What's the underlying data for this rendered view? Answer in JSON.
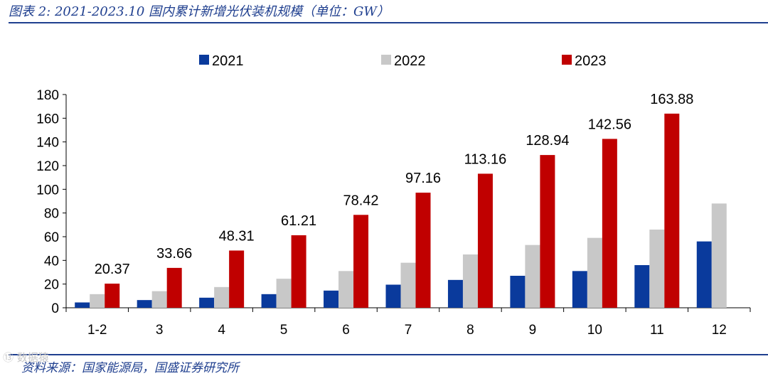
{
  "header": {
    "title": "图表 2:  2021-2023.10 国内累计新增光伏装机规模（单位：GW）"
  },
  "footer": {
    "source": "资料来源：国家能源局，国盛证券研究所",
    "watermark": "⑬ 数据猿"
  },
  "colors": {
    "series_2021": "#0a3a9c",
    "series_2022": "#c8c8c8",
    "series_2023": "#c00000",
    "accent": "#1f3f8f"
  },
  "chart_data": {
    "type": "bar",
    "categories": [
      "1-2",
      "3",
      "4",
      "5",
      "6",
      "7",
      "8",
      "9",
      "10",
      "11",
      "12"
    ],
    "series": [
      {
        "name": "2021",
        "values": [
          4.5,
          6.5,
          8.5,
          11.5,
          14.5,
          19.5,
          23.5,
          27,
          31,
          36,
          56
        ]
      },
      {
        "name": "2022",
        "values": [
          11.5,
          14,
          17.5,
          24.5,
          31,
          38,
          45,
          53,
          59,
          66,
          88
        ]
      },
      {
        "name": "2023",
        "values": [
          20.37,
          33.66,
          48.31,
          61.21,
          78.42,
          97.16,
          113.16,
          128.94,
          142.56,
          163.88,
          null
        ]
      }
    ],
    "data_labels": [
      "20.37",
      "33.66",
      "48.31",
      "61.21",
      "78.42",
      "97.16",
      "113.16",
      "128.94",
      "142.56",
      "163.88"
    ],
    "y_ticks": [
      "0",
      "20",
      "40",
      "60",
      "80",
      "100",
      "120",
      "140",
      "160",
      "180"
    ],
    "ylim": [
      0,
      180
    ],
    "legend_position": "top-center",
    "grid": false
  }
}
